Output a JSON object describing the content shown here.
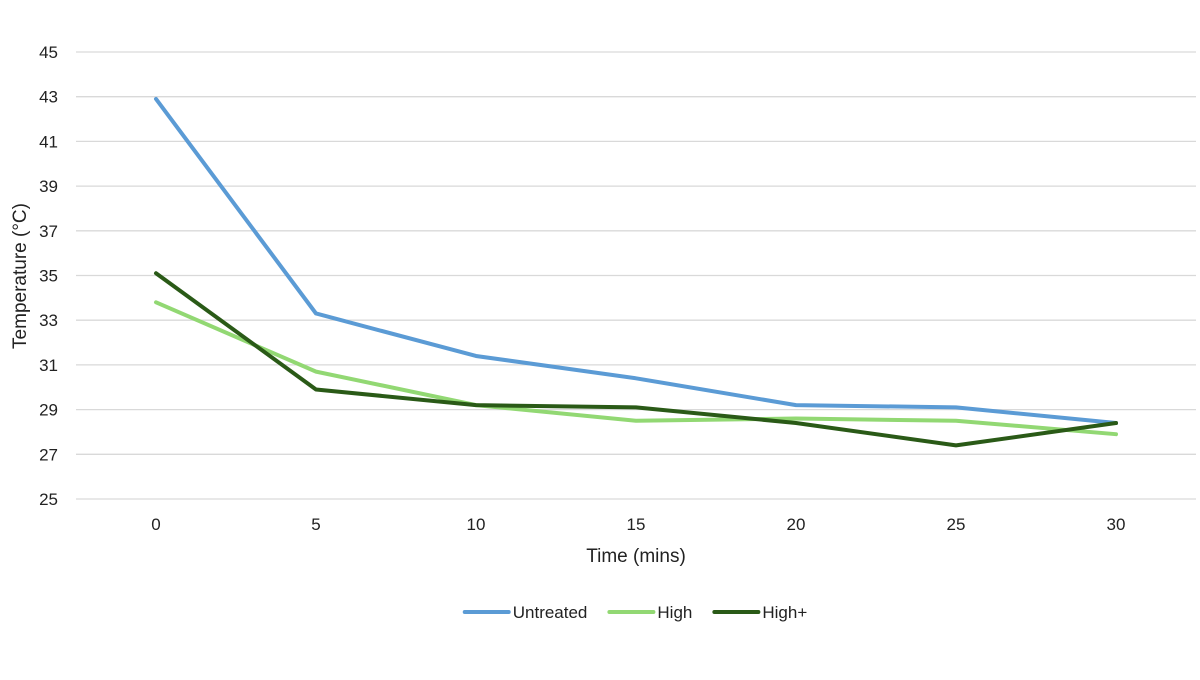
{
  "chart_data": {
    "type": "line",
    "title": "",
    "xlabel": "Time (mins)",
    "ylabel": "Temperature (°C)",
    "x": [
      0,
      5,
      10,
      15,
      20,
      25,
      30
    ],
    "x_tick_labels": [
      "0",
      "5",
      "10",
      "15",
      "20",
      "25",
      "30"
    ],
    "y_tick_labels": [
      "25",
      "27",
      "29",
      "31",
      "33",
      "35",
      "37",
      "39",
      "41",
      "43",
      "45"
    ],
    "ylim": [
      25,
      45
    ],
    "y_ticks": [
      25,
      27,
      29,
      31,
      33,
      35,
      37,
      39,
      41,
      43,
      45
    ],
    "grid": "horizontal",
    "legend_position": "bottom",
    "series": [
      {
        "name": "Untreated",
        "color": "#5b9bd5",
        "values": [
          42.9,
          33.3,
          31.4,
          30.4,
          29.2,
          29.1,
          28.4
        ]
      },
      {
        "name": "High",
        "color": "#92d873",
        "values": [
          33.8,
          30.7,
          29.2,
          28.5,
          28.6,
          28.5,
          27.9
        ]
      },
      {
        "name": "High+",
        "color": "#2a5a17",
        "values": [
          35.1,
          29.9,
          29.2,
          29.1,
          28.4,
          27.4,
          28.4
        ]
      }
    ]
  }
}
